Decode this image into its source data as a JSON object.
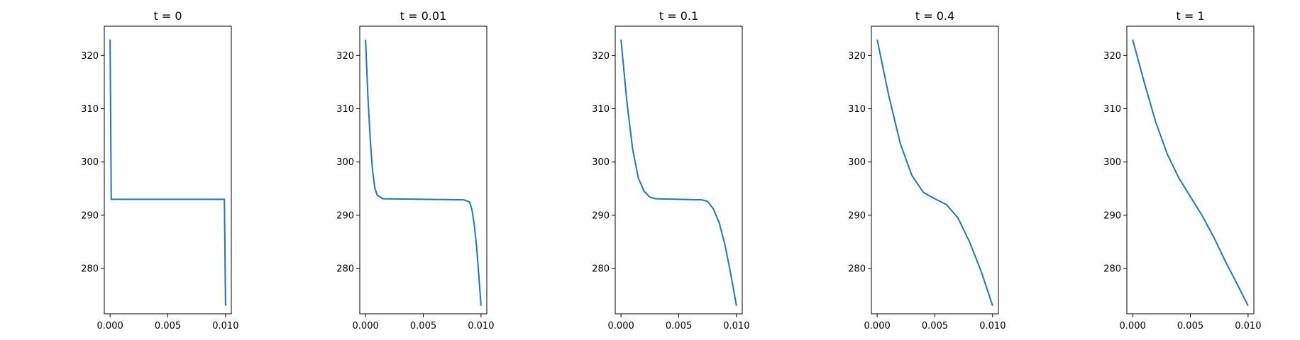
{
  "colors": {
    "line": "#1f77b4",
    "axes": "#000000",
    "background": "#ffffff"
  },
  "chart_data": [
    {
      "type": "line",
      "title": "t = 0",
      "xlabel": "",
      "ylabel": "",
      "xlim": [
        -0.0005,
        0.0105
      ],
      "ylim": [
        271.5,
        325.5
      ],
      "xticks": [
        0,
        0.005,
        0.01
      ],
      "xtick_labels": [
        "0.000",
        "0.005",
        "0.010"
      ],
      "yticks": [
        280,
        290,
        300,
        310,
        320
      ],
      "ytick_labels": [
        "280",
        "290",
        "300",
        "310",
        "320"
      ],
      "grid": false,
      "series": [
        {
          "x": [
            0,
            0.0001,
            0.005,
            0.0099,
            0.01
          ],
          "y": [
            323,
            293,
            293,
            293,
            273
          ]
        }
      ]
    },
    {
      "type": "line",
      "title": "t = 0.01",
      "xlabel": "",
      "ylabel": "",
      "xlim": [
        -0.0005,
        0.0105
      ],
      "ylim": [
        271.5,
        325.5
      ],
      "xticks": [
        0,
        0.005,
        0.01
      ],
      "xtick_labels": [
        "0.000",
        "0.005",
        "0.010"
      ],
      "yticks": [
        280,
        290,
        300,
        310,
        320
      ],
      "ytick_labels": [
        "280",
        "290",
        "300",
        "310",
        "320"
      ],
      "grid": false,
      "series": [
        {
          "x": [
            0,
            0.0002,
            0.0004,
            0.0006,
            0.0008,
            0.001,
            0.0015,
            0.005,
            0.0085,
            0.009,
            0.0092,
            0.0094,
            0.0096,
            0.0098,
            0.01
          ],
          "y": [
            323,
            312.5,
            304.5,
            298.5,
            295.2,
            293.8,
            293.1,
            293,
            292.9,
            292.5,
            291.2,
            288.5,
            284.5,
            279,
            273
          ]
        }
      ]
    },
    {
      "type": "line",
      "title": "t = 0.1",
      "xlabel": "",
      "ylabel": "",
      "xlim": [
        -0.0005,
        0.0105
      ],
      "ylim": [
        271.5,
        325.5
      ],
      "xticks": [
        0,
        0.005,
        0.01
      ],
      "xtick_labels": [
        "0.000",
        "0.005",
        "0.010"
      ],
      "yticks": [
        280,
        290,
        300,
        310,
        320
      ],
      "ytick_labels": [
        "280",
        "290",
        "300",
        "310",
        "320"
      ],
      "grid": false,
      "series": [
        {
          "x": [
            0,
            0.0005,
            0.001,
            0.0015,
            0.002,
            0.0025,
            0.003,
            0.005,
            0.007,
            0.0075,
            0.008,
            0.0085,
            0.009,
            0.0095,
            0.01
          ],
          "y": [
            323,
            311.5,
            302.5,
            297,
            294.5,
            293.4,
            293.1,
            293,
            292.9,
            292.6,
            291.2,
            288.6,
            284.5,
            279,
            273
          ]
        }
      ]
    },
    {
      "type": "line",
      "title": "t = 0.4",
      "xlabel": "",
      "ylabel": "",
      "xlim": [
        -0.0005,
        0.0105
      ],
      "ylim": [
        271.5,
        325.5
      ],
      "xticks": [
        0,
        0.005,
        0.01
      ],
      "xtick_labels": [
        "0.000",
        "0.005",
        "0.010"
      ],
      "yticks": [
        280,
        290,
        300,
        310,
        320
      ],
      "ytick_labels": [
        "280",
        "290",
        "300",
        "310",
        "320"
      ],
      "grid": false,
      "series": [
        {
          "x": [
            0,
            0.001,
            0.002,
            0.003,
            0.004,
            0.005,
            0.006,
            0.007,
            0.008,
            0.009,
            0.01
          ],
          "y": [
            323,
            312.5,
            303.5,
            297.5,
            294.3,
            293.1,
            292,
            289.5,
            285,
            279.5,
            273
          ]
        }
      ]
    },
    {
      "type": "line",
      "title": "t = 1",
      "xlabel": "",
      "ylabel": "",
      "xlim": [
        -0.0005,
        0.0105
      ],
      "ylim": [
        271.5,
        325.5
      ],
      "xticks": [
        0,
        0.005,
        0.01
      ],
      "xtick_labels": [
        "0.000",
        "0.005",
        "0.010"
      ],
      "yticks": [
        280,
        290,
        300,
        310,
        320
      ],
      "ytick_labels": [
        "280",
        "290",
        "300",
        "310",
        "320"
      ],
      "grid": false,
      "series": [
        {
          "x": [
            0,
            0.001,
            0.002,
            0.003,
            0.004,
            0.005,
            0.006,
            0.007,
            0.008,
            0.009,
            0.01
          ],
          "y": [
            323,
            315,
            307.5,
            301.5,
            297,
            293.5,
            290,
            286,
            281.5,
            277.3,
            273
          ]
        }
      ]
    }
  ]
}
